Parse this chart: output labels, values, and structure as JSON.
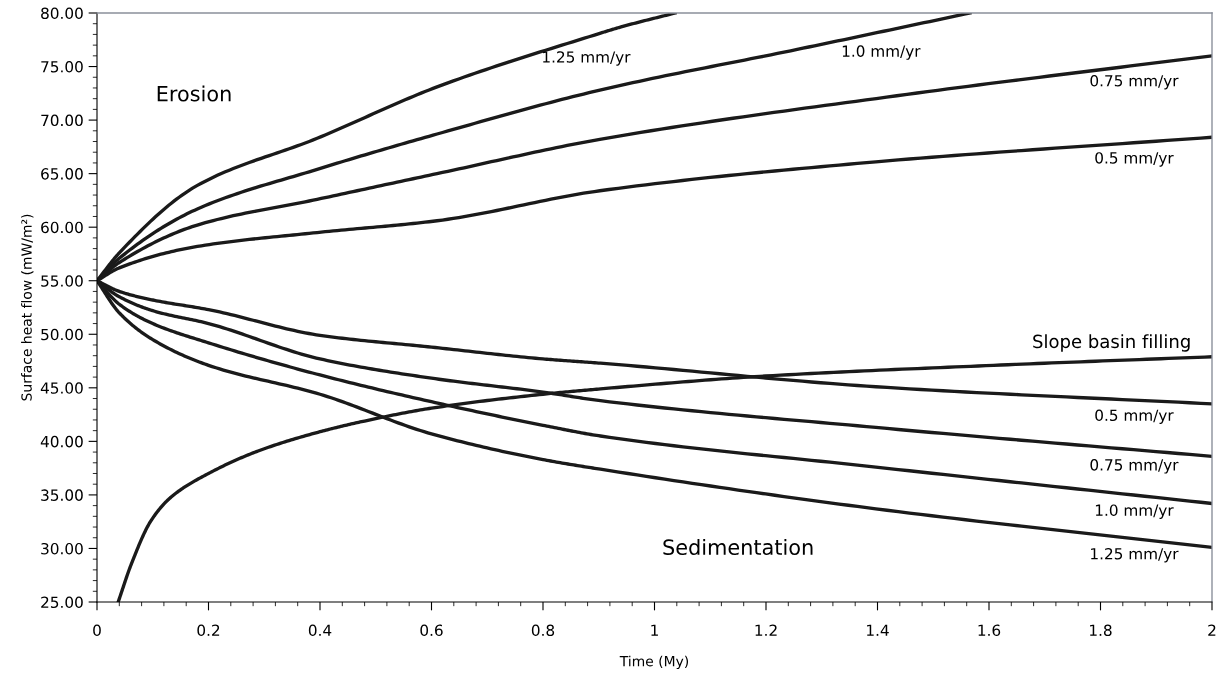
{
  "chart_data": {
    "type": "line",
    "xlabel": "Time (My)",
    "ylabel": "Surface heat flow (mW/m²)",
    "xlim": [
      0,
      2
    ],
    "ylim": [
      25,
      80
    ],
    "xticks": [
      0,
      0.2,
      0.4,
      0.6,
      0.8,
      1,
      1.2,
      1.4,
      1.6,
      1.8,
      2
    ],
    "yticks": [
      {
        "value": 25,
        "label": "25.00"
      },
      {
        "value": 30,
        "label": "30.00"
      },
      {
        "value": 35,
        "label": "35.00"
      },
      {
        "value": 40,
        "label": "40.00"
      },
      {
        "value": 45,
        "label": "45.00"
      },
      {
        "value": 50,
        "label": "50.00"
      },
      {
        "value": 55,
        "label": "55.00"
      },
      {
        "value": 60,
        "label": "60.00"
      },
      {
        "value": 65,
        "label": "65.00"
      },
      {
        "value": 70,
        "label": "70.00"
      },
      {
        "value": 75,
        "label": "75.00"
      },
      {
        "value": 80,
        "label": "80.00"
      }
    ],
    "grid": false,
    "legend": false,
    "marker": "none",
    "line_style": "solid",
    "series": [
      {
        "name": "1.25 mm/yr",
        "color": "#1a1a1a",
        "x": [
          0,
          0.04,
          0.18,
          0.395,
          0.61,
          0.902,
          0.94,
          1.037
        ],
        "values": [
          55,
          57.6,
          63.9,
          68.3,
          73.1,
          78.1,
          78.7,
          80
        ]
      },
      {
        "name": "1.0 mm/yr",
        "color": "#1a1a1a",
        "x": [
          0,
          0.04,
          0.18,
          0.395,
          0.61,
          0.902,
          1.256,
          1.566
        ],
        "values": [
          55,
          57.1,
          61.7,
          65.4,
          68.7,
          72.8,
          76.6,
          80
        ]
      },
      {
        "name": "0.75 mm/yr",
        "color": "#1a1a1a",
        "x": [
          0,
          0.04,
          0.18,
          0.395,
          0.61,
          0.902,
          1.453,
          2
        ],
        "values": [
          55,
          56.7,
          60.2,
          62.6,
          65.0,
          68.2,
          72.4,
          76.0
        ]
      },
      {
        "name": "0.5 mm/yr",
        "color": "#1a1a1a",
        "x": [
          0,
          0.04,
          0.18,
          0.395,
          0.61,
          0.902,
          1.397,
          2
        ],
        "values": [
          55,
          56.2,
          58.2,
          59.5,
          60.6,
          63.4,
          66.1,
          68.4
        ]
      },
      {
        "name": "0.5 mm/yr",
        "color": "#1a1a1a",
        "x": [
          0,
          0.04,
          0.1,
          0.2,
          0.4,
          0.6,
          0.8,
          0.903,
          1.397,
          2
        ],
        "values": [
          55,
          54.0,
          53.2,
          52.3,
          49.9,
          48.8,
          47.7,
          47.3,
          45.1,
          43.5
        ]
      },
      {
        "name": "0.75 mm/yr",
        "color": "#1a1a1a",
        "x": [
          0,
          0.04,
          0.1,
          0.2,
          0.4,
          0.6,
          0.8,
          0.903,
          1.397,
          2
        ],
        "values": [
          55,
          53.5,
          52.2,
          51.0,
          47.7,
          45.9,
          44.6,
          43.8,
          41.3,
          38.6
        ]
      },
      {
        "name": "1.0 mm/yr",
        "color": "#1a1a1a",
        "x": [
          0,
          0.04,
          0.1,
          0.2,
          0.4,
          0.6,
          0.8,
          0.903,
          1.397,
          2
        ],
        "values": [
          55,
          52.8,
          51.0,
          49.2,
          46.2,
          43.7,
          41.5,
          40.5,
          37.6,
          34.2
        ]
      },
      {
        "name": "1.25 mm/yr",
        "color": "#1a1a1a",
        "x": [
          0,
          0.04,
          0.1,
          0.2,
          0.4,
          0.6,
          0.8,
          0.903,
          1.397,
          2
        ],
        "values": [
          55,
          52.0,
          49.5,
          47.1,
          44.4,
          40.7,
          38.3,
          37.4,
          33.7,
          30.1
        ]
      },
      {
        "name": "Slope basin filling",
        "color": "#1a1a1a",
        "x": [
          0.038,
          0.062,
          0.097,
          0.133,
          0.2,
          0.289,
          0.4,
          0.48,
          0.6,
          0.8,
          0.903,
          1.199,
          1.608,
          2
        ],
        "values": [
          25.0,
          28.6,
          32.6,
          34.8,
          37.0,
          39.1,
          40.9,
          41.9,
          43.1,
          44.4,
          44.9,
          46.1,
          47.1,
          47.9
        ]
      }
    ],
    "annotations": [
      "Erosion",
      "Sedimentation"
    ]
  }
}
